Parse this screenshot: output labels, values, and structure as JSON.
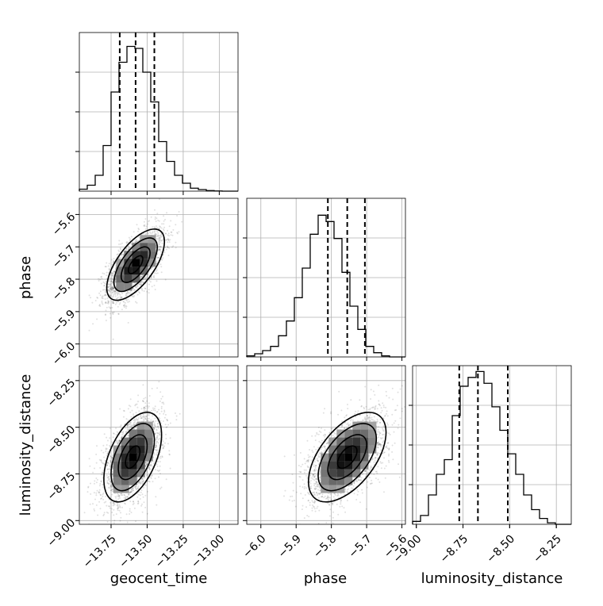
{
  "chart_data": {
    "type": "corner",
    "parameters": [
      "geocent_time",
      "phase",
      "luminosity_distance"
    ],
    "grid": true,
    "histograms": [
      {
        "parameter": "geocent_time",
        "range": [
          -13.97,
          -12.87
        ],
        "bins": 20,
        "counts": [
          1,
          3,
          8,
          23,
          50,
          65,
          73,
          72,
          60,
          45,
          25,
          15,
          8,
          4,
          1.5,
          0.8,
          0.3,
          0.1,
          0,
          0
        ],
        "count_max": 80,
        "quantiles": [
          -13.69,
          -13.58,
          -13.45
        ],
        "xticks": [
          -13.75,
          -13.5,
          -13.25,
          -13.0
        ],
        "xtick_labels": [
          "−13.75",
          "−13.50",
          "−13.25",
          "−13.00"
        ]
      },
      {
        "parameter": "phase",
        "range": [
          -6.04,
          -5.59
        ],
        "bins": 20,
        "counts": [
          0.5,
          1.5,
          3,
          5,
          10,
          17,
          28,
          42,
          58,
          67,
          64,
          56,
          40,
          24,
          13,
          5,
          2,
          0.5,
          0,
          0
        ],
        "count_max": 75,
        "quantiles": [
          -5.81,
          -5.755,
          -5.705
        ],
        "xticks": [
          -6.0,
          -5.9,
          -5.8,
          -5.7,
          -5.6
        ],
        "xtick_labels": [
          "−6.0",
          "−5.9",
          "−5.8",
          "−5.7",
          "−5.6"
        ]
      },
      {
        "parameter": "luminosity_distance",
        "range": [
          -9.02,
          -8.17
        ],
        "bins": 20,
        "counts": [
          1,
          3,
          10,
          17,
          22,
          37,
          47,
          50,
          52,
          48,
          40,
          32,
          24,
          17,
          10,
          5,
          2,
          0.5,
          0,
          0
        ],
        "count_max": 54,
        "quantiles": [
          -8.77,
          -8.67,
          -8.51
        ],
        "xticks": [
          -9.0,
          -8.75,
          -8.5,
          -8.25
        ],
        "xtick_labels": [
          "−9.00",
          "−8.75",
          "−8.50",
          "−8.25"
        ]
      }
    ],
    "scatter_panels": [
      {
        "x_parameter": "geocent_time",
        "y_parameter": "phase",
        "x_range": [
          -13.97,
          -12.87
        ],
        "y_range": [
          -6.04,
          -5.55
        ],
        "center": [
          -13.58,
          -5.755
        ],
        "sigma": [
          0.1,
          0.055
        ],
        "correlation": 0.65,
        "yticks": [
          -6.0,
          -5.9,
          -5.8,
          -5.7,
          -5.6
        ],
        "ytick_labels": [
          "−6.0",
          "−5.9",
          "−5.8",
          "−5.7",
          "−5.6"
        ]
      },
      {
        "x_parameter": "geocent_time",
        "y_parameter": "luminosity_distance",
        "x_range": [
          -13.97,
          -12.87
        ],
        "y_range": [
          -9.02,
          -8.17
        ],
        "center": [
          -13.6,
          -8.66
        ],
        "sigma": [
          0.1,
          0.12
        ],
        "correlation": 0.5,
        "yticks": [
          -9.0,
          -8.75,
          -8.5,
          -8.25
        ],
        "ytick_labels": [
          "−9.00",
          "−8.75",
          "−8.50",
          "−8.25"
        ]
      },
      {
        "x_parameter": "phase",
        "y_parameter": "luminosity_distance",
        "x_range": [
          -6.04,
          -5.59
        ],
        "y_range": [
          -9.02,
          -8.17
        ],
        "center": [
          -5.755,
          -8.66
        ],
        "sigma": [
          0.055,
          0.12
        ],
        "correlation": 0.55,
        "yticks": [],
        "ytick_labels": []
      }
    ],
    "contour_levels_sigma": [
      0.5,
      1.0,
      1.5,
      2.0
    ],
    "axis_labels": {
      "x": [
        "geocent_time",
        "phase",
        "luminosity_distance"
      ],
      "y": [
        "phase",
        "luminosity_distance"
      ]
    }
  }
}
